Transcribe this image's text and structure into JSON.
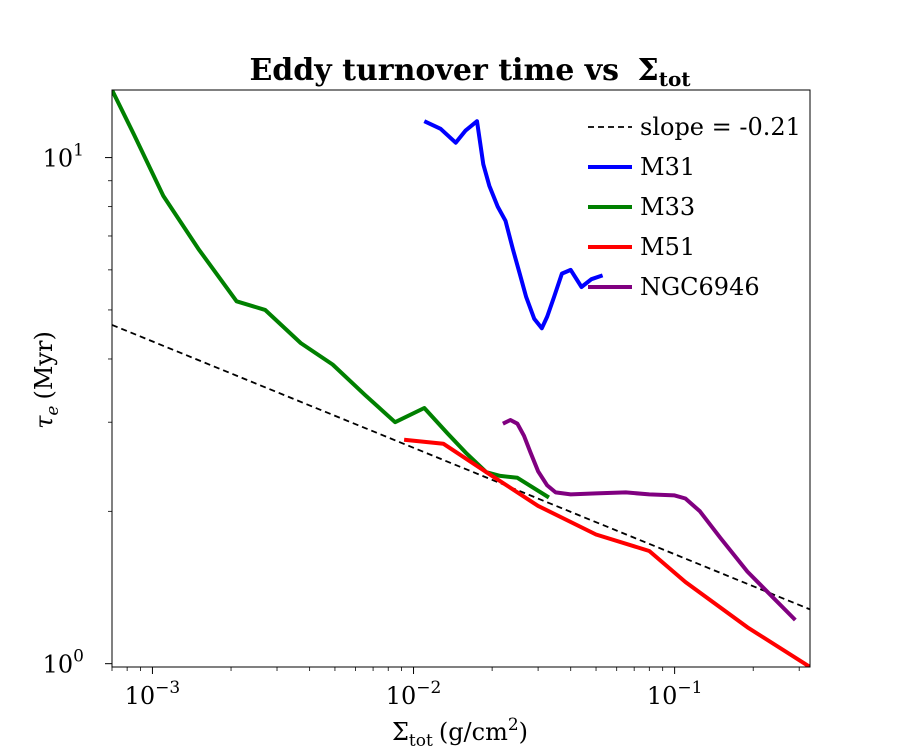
{
  "chart_data": {
    "type": "line",
    "title": "Eddy turnover time vs",
    "title_symbol": "Σ",
    "title_subscript": "tot",
    "xlabel": "Σ",
    "xlabel_subscript": "tot",
    "xlabel_units": "(g/cm",
    "xlabel_units_sup": "2",
    "xlabel_units_close": ")",
    "ylabel": "τ",
    "ylabel_subscript": "e",
    "ylabel_units": "(Myr)",
    "xscale": "log",
    "yscale": "log",
    "xlim": [
      0.0007,
      0.33
    ],
    "ylim": [
      0.985,
      13.6
    ],
    "x_major_ticks": [
      {
        "value": 0.001,
        "base": "10",
        "exp": "−3"
      },
      {
        "value": 0.01,
        "base": "10",
        "exp": "−2"
      },
      {
        "value": 0.1,
        "base": "10",
        "exp": "−1"
      }
    ],
    "y_major_ticks": [
      {
        "value": 1,
        "base": "10",
        "exp": "0"
      },
      {
        "value": 10,
        "base": "10",
        "exp": "1"
      }
    ],
    "legend_placement": "top-right",
    "grid": false,
    "series": [
      {
        "name": "slope = -0.21",
        "color": "#000000",
        "dashed": true,
        "x": [
          0.0007,
          0.33
        ],
        "y": [
          4.67,
          1.28
        ]
      },
      {
        "name": "M31",
        "color": "#0000ff",
        "dashed": false,
        "x": [
          0.011,
          0.0127,
          0.0145,
          0.0158,
          0.0175,
          0.0185,
          0.0195,
          0.021,
          0.0225,
          0.024,
          0.0255,
          0.027,
          0.029,
          0.031,
          0.0325,
          0.0345,
          0.037,
          0.04,
          0.044,
          0.048,
          0.053
        ],
        "y": [
          11.8,
          11.4,
          10.7,
          11.3,
          11.8,
          9.7,
          8.8,
          8.0,
          7.5,
          6.6,
          5.9,
          5.3,
          4.8,
          4.6,
          4.85,
          5.3,
          5.9,
          6.0,
          5.55,
          5.75,
          5.85
        ]
      },
      {
        "name": "M33",
        "color": "#008000",
        "dashed": false,
        "x": [
          0.0007,
          0.00085,
          0.0011,
          0.0015,
          0.0021,
          0.0027,
          0.0037,
          0.0049,
          0.0065,
          0.0085,
          0.011,
          0.0135,
          0.016,
          0.019,
          0.0215,
          0.025,
          0.033
        ],
        "y": [
          13.6,
          11.1,
          8.4,
          6.6,
          5.2,
          5.0,
          4.3,
          3.9,
          3.4,
          3.0,
          3.2,
          2.85,
          2.6,
          2.39,
          2.35,
          2.33,
          2.13
        ]
      },
      {
        "name": "M51",
        "color": "#ff0000",
        "dashed": false,
        "x": [
          0.0092,
          0.013,
          0.02,
          0.03,
          0.05,
          0.08,
          0.11,
          0.19,
          0.33
        ],
        "y": [
          2.77,
          2.72,
          2.35,
          2.05,
          1.8,
          1.67,
          1.45,
          1.18,
          0.985
        ]
      },
      {
        "name": "NGC6946",
        "color": "#800080",
        "dashed": false,
        "x": [
          0.022,
          0.0235,
          0.025,
          0.0265,
          0.028,
          0.03,
          0.0325,
          0.035,
          0.04,
          0.05,
          0.065,
          0.08,
          0.1,
          0.11,
          0.125,
          0.15,
          0.19,
          0.29
        ],
        "y": [
          2.98,
          3.03,
          2.98,
          2.82,
          2.62,
          2.4,
          2.25,
          2.18,
          2.16,
          2.17,
          2.18,
          2.16,
          2.15,
          2.12,
          2.0,
          1.77,
          1.52,
          1.22
        ]
      }
    ]
  }
}
